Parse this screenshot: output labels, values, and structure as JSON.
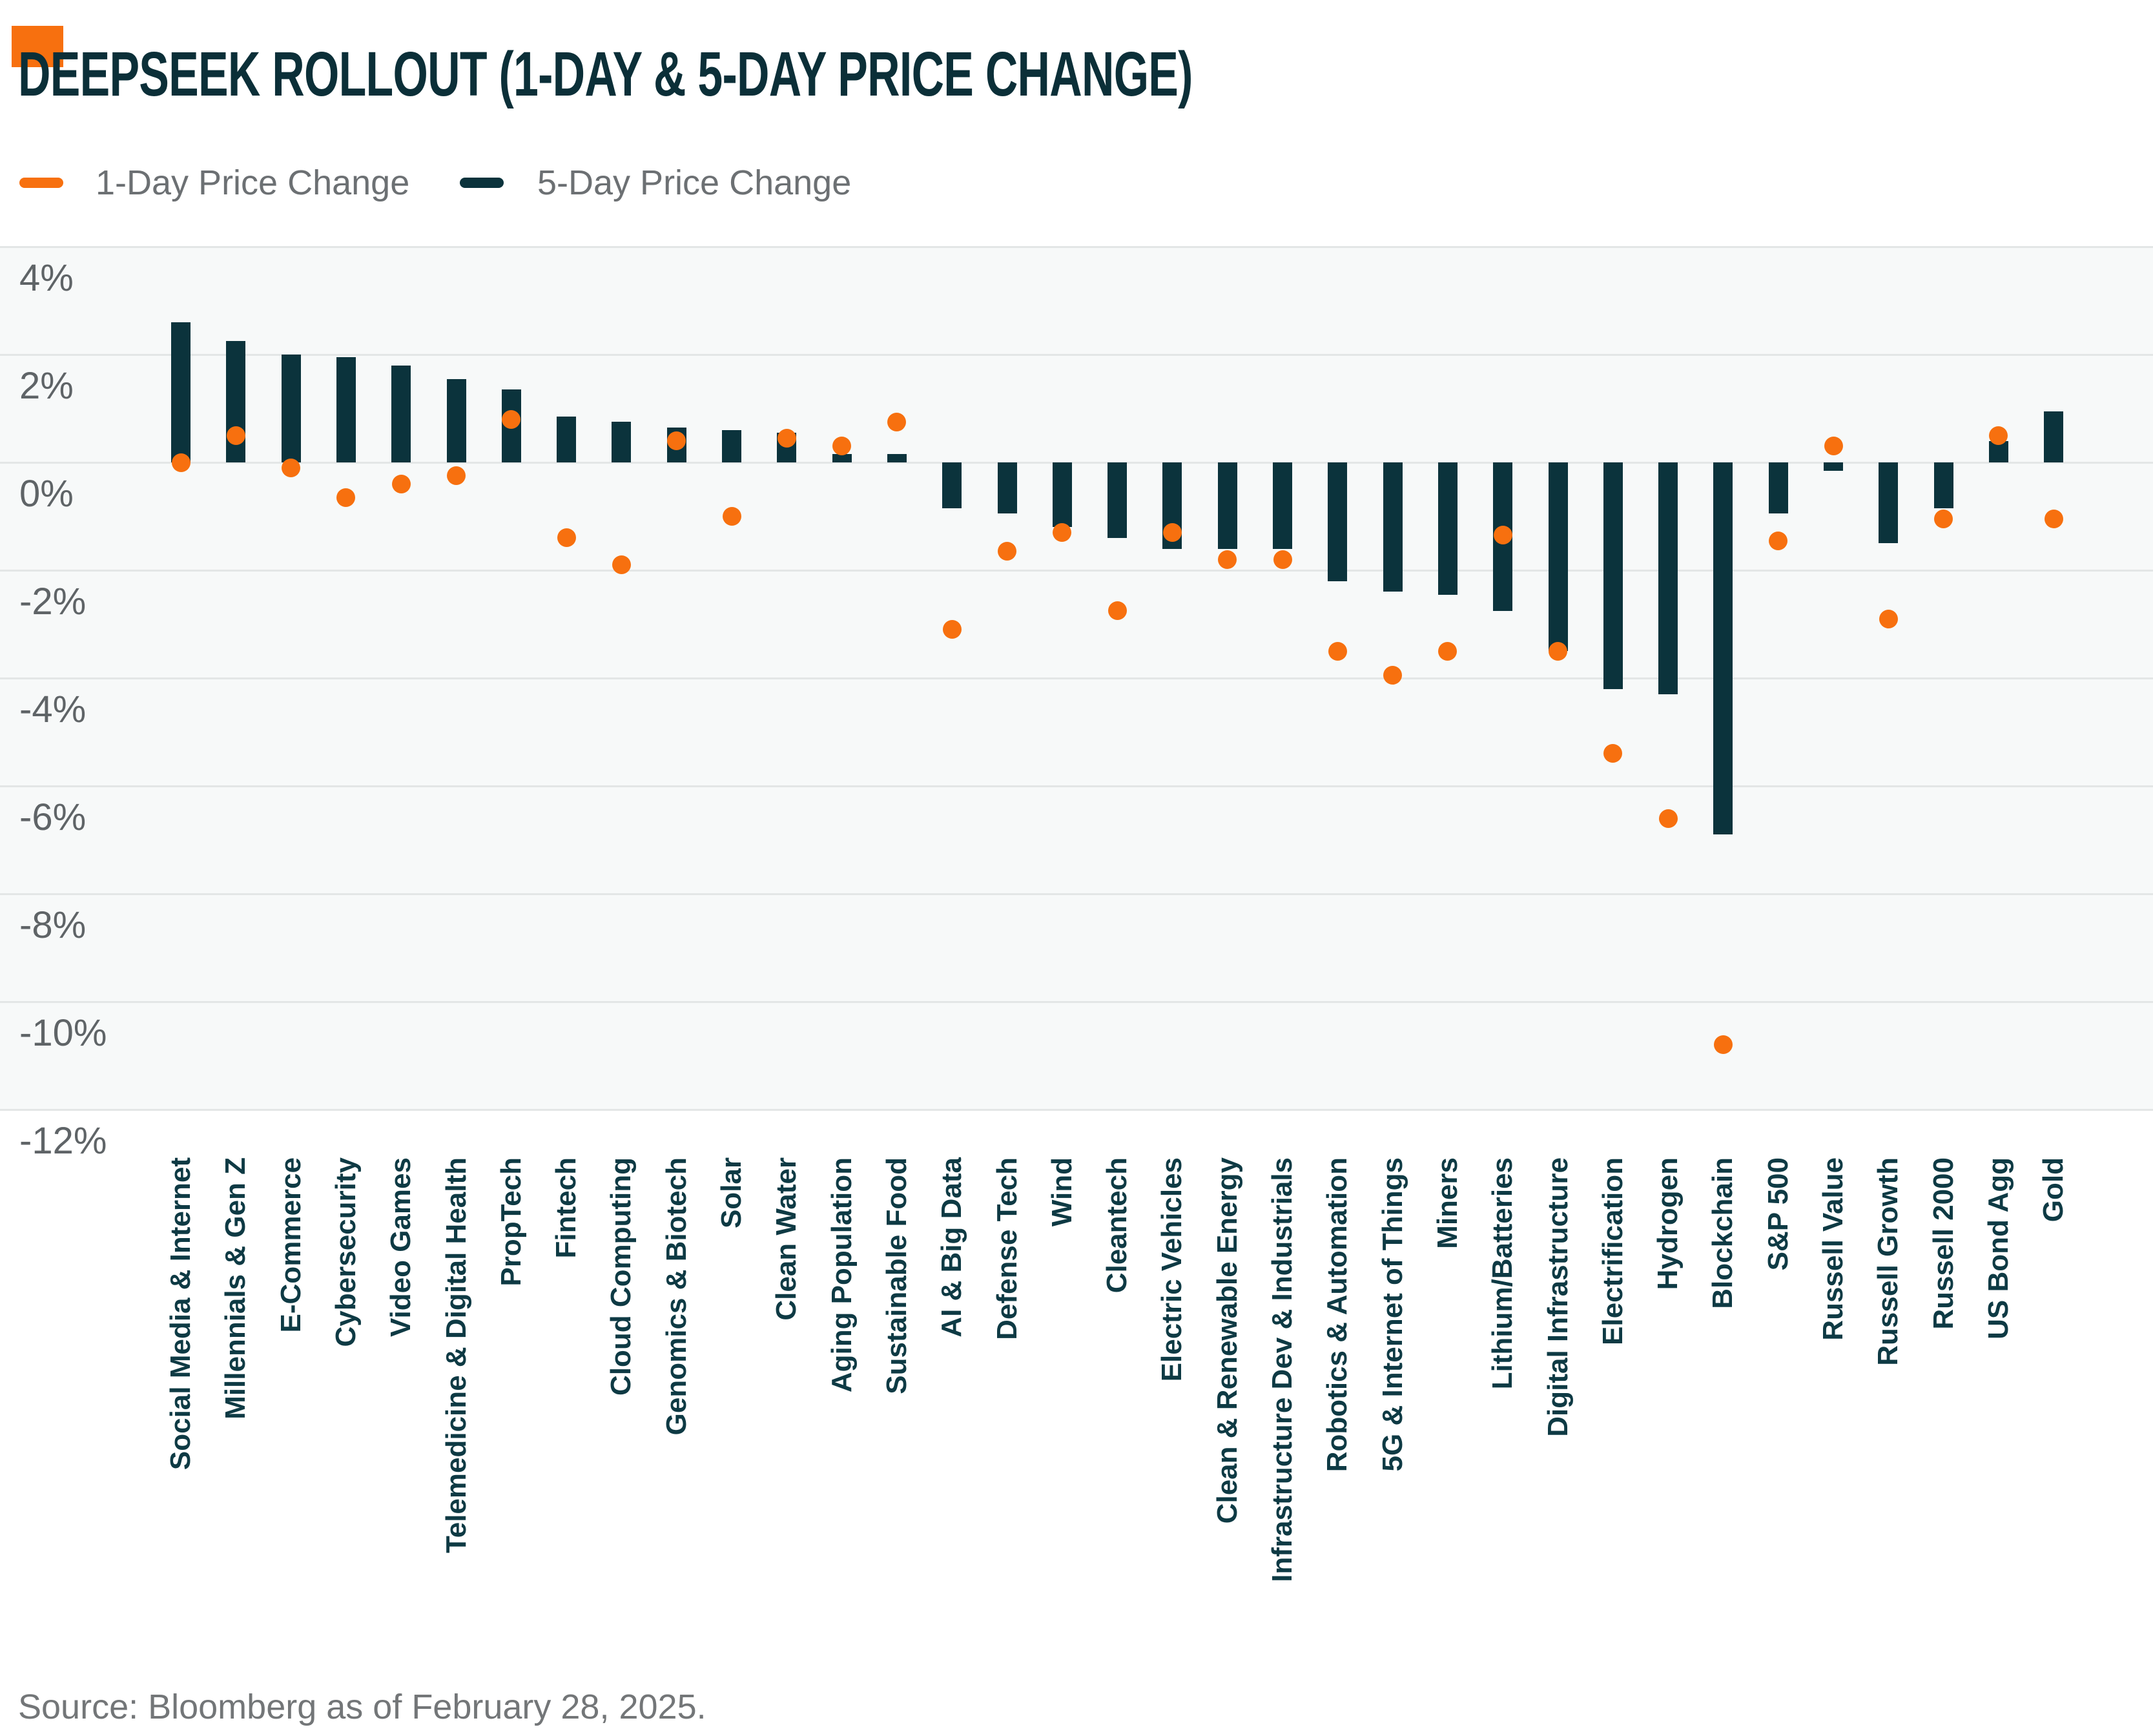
{
  "header": {
    "title": "DEEPSEEK ROLLOUT (1-DAY & 5-DAY PRICE CHANGE)"
  },
  "legend": {
    "items": [
      {
        "label": "1-Day Price Change",
        "color": "#F7700F"
      },
      {
        "label": "5-Day Price Change",
        "color": "#0B333C"
      }
    ]
  },
  "footer": {
    "source": "Source: Bloomberg as of February 28, 2025."
  },
  "colors": {
    "accent_orange": "#F7700F",
    "dark_teal": "#0B333C",
    "title_teal": "#0B2F38",
    "category_label_teal": "#0E3A44",
    "tick_gray": "#5F6467",
    "legend_gray": "#6C7073",
    "gridline_gray": "#E3E6E6",
    "plot_background": "#F7F9F9"
  },
  "chart_data": {
    "type": "bar",
    "subtype": "bar-with-scatter-overlay",
    "title": "DEEPSEEK ROLLOUT (1-DAY & 5-DAY PRICE CHANGE)",
    "xlabel": "",
    "ylabel": "",
    "y_unit": "%",
    "ylim": [
      -12,
      4
    ],
    "y_tick_step": 2,
    "y_tick_labels": [
      "4%",
      "2%",
      "0%",
      "-2%",
      "-4%",
      "-6%",
      "-8%",
      "-10%",
      "-12%"
    ],
    "grid": true,
    "legend_position": "top-left",
    "categories": [
      "Social Media & Internet",
      "Millennials & Gen Z",
      "E-Commerce",
      "Cybersecurity",
      "Video Games",
      "Telemedicine & Digital Health",
      "PropTech",
      "Fintech",
      "Cloud Computing",
      "Genomics & Biotech",
      "Solar",
      "Clean Water",
      "Aging Population",
      "Sustainable Food",
      "AI & Big Data",
      "Defense Tech",
      "Wind",
      "Cleantech",
      "Electric Vehicles",
      "Clean & Renewable Energy",
      "Infrastructure Dev & Industrials",
      "Robotics & Automation",
      "5G & Internet of Things",
      "Miners",
      "Lithium/Batteries",
      "Digital Infrastructure",
      "Electrification",
      "Hydrogen",
      "Blockchain",
      "S&P 500",
      "Russell Value",
      "Russell Growth",
      "Russell 2000",
      "US Bond Agg",
      "Gold"
    ],
    "series": [
      {
        "name": "5-Day Price Change",
        "mark": "bar",
        "color": "#0B333C",
        "values": [
          2.6,
          2.25,
          2.0,
          1.95,
          1.8,
          1.55,
          1.35,
          0.85,
          0.75,
          0.65,
          0.6,
          0.55,
          0.15,
          0.15,
          -0.85,
          -0.95,
          -1.2,
          -1.4,
          -1.6,
          -1.6,
          -1.6,
          -2.2,
          -2.4,
          -2.45,
          -2.75,
          -3.5,
          -4.2,
          -4.3,
          -6.9,
          -0.95,
          -0.15,
          -1.5,
          -0.85,
          0.4,
          0.95
        ]
      },
      {
        "name": "1-Day Price Change",
        "mark": "point",
        "color": "#F7700F",
        "values": [
          0.0,
          0.5,
          -0.1,
          -0.65,
          -0.4,
          -0.25,
          0.8,
          -1.4,
          -1.9,
          0.4,
          -1.0,
          0.45,
          0.3,
          0.75,
          -3.1,
          -1.65,
          -1.3,
          -2.75,
          -1.3,
          -1.8,
          -1.8,
          -3.5,
          -3.95,
          -3.5,
          -1.35,
          -3.5,
          -5.4,
          -6.6,
          -10.8,
          -1.45,
          0.3,
          -2.9,
          -1.05,
          0.5,
          -1.05
        ]
      }
    ]
  }
}
